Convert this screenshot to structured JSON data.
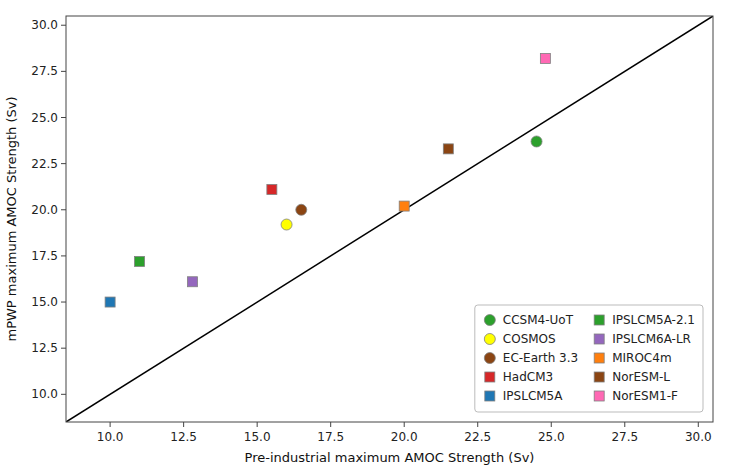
{
  "chart_data": {
    "type": "scatter",
    "xlabel": "Pre-industrial maximum AMOC Strength (Sv)",
    "ylabel": "mPWP maximum AMOC Strength (Sv)",
    "series": [
      {
        "name": "CCSM4-UoT",
        "color": "#2ca02c",
        "marker": "circle",
        "x": [
          24.5
        ],
        "values": [
          23.7
        ]
      },
      {
        "name": "COSMOS",
        "color": "#ffff00",
        "marker": "circle",
        "x": [
          16.0
        ],
        "values": [
          19.2
        ]
      },
      {
        "name": "EC-Earth 3.3",
        "color": "#8B4513",
        "marker": "circle",
        "x": [
          16.5
        ],
        "values": [
          20.0
        ]
      },
      {
        "name": "HadCM3",
        "color": "#d62728",
        "marker": "square",
        "x": [
          15.5
        ],
        "values": [
          21.1
        ]
      },
      {
        "name": "IPSLCM5A",
        "color": "#1f77b4",
        "marker": "square",
        "x": [
          10.0
        ],
        "values": [
          15.0
        ]
      },
      {
        "name": "IPSLCM5A-2.1",
        "color": "#2ca02c",
        "marker": "square",
        "x": [
          11.0
        ],
        "values": [
          17.2
        ]
      },
      {
        "name": "IPSLCM6A-LR",
        "color": "#9467bd",
        "marker": "square",
        "x": [
          12.8
        ],
        "values": [
          16.1
        ]
      },
      {
        "name": "MIROC4m",
        "color": "#ff7f0e",
        "marker": "square",
        "x": [
          20.0
        ],
        "values": [
          20.2
        ]
      },
      {
        "name": "NorESM-L",
        "color": "#8B4513",
        "marker": "square",
        "x": [
          21.5
        ],
        "values": [
          23.3
        ]
      },
      {
        "name": "NorESM1-F",
        "color": "#ff69b4",
        "marker": "square",
        "x": [
          24.8
        ],
        "values": [
          28.2
        ]
      },
      {
        "type": "line",
        "color": "black",
        "x": [
          8.5,
          30.5
        ],
        "values": [
          8.5,
          30.5
        ]
      }
    ],
    "xlim": [
      8.5,
      30.5
    ],
    "ylim": [
      8.5,
      30.5
    ],
    "xticks": [
      {
        "value": 10.0,
        "label": "10.0"
      },
      12.5,
      {
        "value": 15.0,
        "label": "15.0"
      },
      17.5,
      {
        "value": 20.0,
        "label": "20.0"
      },
      22.5,
      {
        "value": 25.0,
        "label": "25.0"
      },
      27.5,
      {
        "value": 30.0,
        "label": "30.0"
      }
    ],
    "yticks": [
      {
        "value": 10.0,
        "label": "10.0"
      },
      12.5,
      {
        "value": 15.0,
        "label": "15.0"
      },
      17.5,
      {
        "value": 20.0,
        "label": "20.0"
      },
      22.5,
      {
        "value": 25.0,
        "label": "25.0"
      },
      27.5,
      {
        "value": 30.0,
        "label": "30.0"
      }
    ],
    "legend": "lower right"
  }
}
